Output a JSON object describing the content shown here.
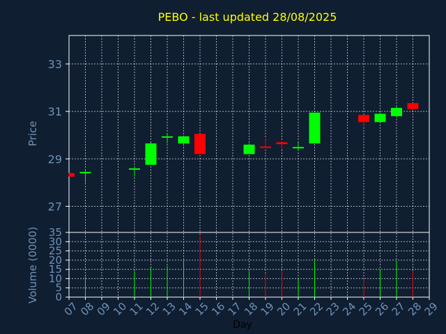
{
  "chart_data": {
    "type": "candlestick",
    "title": "PEBO - last updated 28/08/2025",
    "colors": {
      "up": "#00ff00",
      "down": "#ff0000",
      "background": "#0f1e30",
      "text": "#6f93b8",
      "title": "#ffff00"
    },
    "price_panel": {
      "ylabel": "Price",
      "ylim": [
        25.9,
        34.2
      ],
      "yticks": [
        27,
        29,
        31,
        33
      ]
    },
    "volume_panel": {
      "ylabel": "Volume (0000)",
      "ylim": [
        0,
        35
      ],
      "yticks": [
        0,
        5,
        10,
        15,
        20,
        25,
        30,
        35
      ]
    },
    "xlabel": "Day",
    "x_ticks": [
      "07",
      "08",
      "09",
      "10",
      "11",
      "12",
      "13",
      "14",
      "15",
      "16",
      "17",
      "18",
      "19",
      "20",
      "21",
      "22",
      "23",
      "24",
      "25",
      "26",
      "27",
      "28",
      "29"
    ],
    "candles": [
      {
        "day": "07",
        "open": 28.4,
        "high": 28.4,
        "low": 28.25,
        "close": 28.25,
        "volume": 0
      },
      {
        "day": "08",
        "open": 28.42,
        "high": 28.5,
        "low": 28.0,
        "close": 28.45,
        "volume": 11
      },
      {
        "day": "11",
        "open": 28.55,
        "high": 28.65,
        "low": 28.25,
        "close": 28.6,
        "volume": 14
      },
      {
        "day": "12",
        "open": 28.75,
        "high": 29.7,
        "low": 28.75,
        "close": 29.65,
        "volume": 16
      },
      {
        "day": "13",
        "open": 29.9,
        "high": 30.05,
        "low": 29.65,
        "close": 29.95,
        "volume": 17
      },
      {
        "day": "14",
        "open": 29.65,
        "high": 29.95,
        "low": 29.55,
        "close": 29.95,
        "volume": 21
      },
      {
        "day": "15",
        "open": 30.05,
        "high": 30.05,
        "low": 29.2,
        "close": 29.2,
        "volume": 34
      },
      {
        "day": "18",
        "open": 29.2,
        "high": 29.65,
        "low": 29.2,
        "close": 29.6,
        "volume": 14
      },
      {
        "day": "19",
        "open": 29.52,
        "high": 29.85,
        "low": 29.45,
        "close": 29.48,
        "volume": 13
      },
      {
        "day": "20",
        "open": 29.7,
        "high": 29.75,
        "low": 29.4,
        "close": 29.62,
        "volume": 14
      },
      {
        "day": "21",
        "open": 29.45,
        "high": 29.7,
        "low": 29.35,
        "close": 29.5,
        "volume": 10
      },
      {
        "day": "22",
        "open": 29.65,
        "high": 30.95,
        "low": 29.65,
        "close": 30.95,
        "volume": 20
      },
      {
        "day": "25",
        "open": 30.85,
        "high": 30.85,
        "low": 30.4,
        "close": 30.55,
        "volume": 10
      },
      {
        "day": "26",
        "open": 30.55,
        "high": 30.95,
        "low": 30.55,
        "close": 30.9,
        "volume": 15
      },
      {
        "day": "27",
        "open": 30.8,
        "high": 31.25,
        "low": 30.75,
        "close": 31.15,
        "volume": 19
      },
      {
        "day": "28",
        "open": 31.35,
        "high": 31.35,
        "low": 31.05,
        "close": 31.1,
        "volume": 14
      }
    ]
  }
}
